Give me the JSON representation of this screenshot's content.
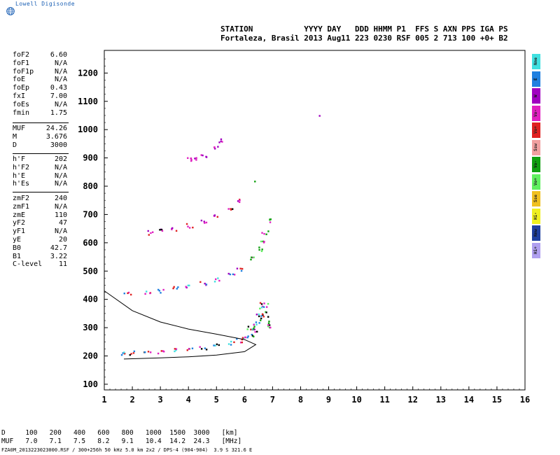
{
  "brand": "Lowell Digisonde",
  "header": {
    "line1": "STATION           YYYY DAY   DDD HHMM P1  FFS S AXN PPS IGA PS",
    "line2": "Fortaleza, Brasil 2013 Aug11 223 0230 RSF 005 2 713 100 +0+ B2"
  },
  "params": {
    "group1": [
      {
        "name": "foF2",
        "value": "6.60"
      },
      {
        "name": "foF1",
        "value": "N/A"
      },
      {
        "name": "foF1p",
        "value": "N/A"
      },
      {
        "name": "foE",
        "value": "N/A"
      },
      {
        "name": "foEp",
        "value": "0.43"
      },
      {
        "name": "fxI",
        "value": "7.00"
      },
      {
        "name": "foEs",
        "value": "N/A"
      },
      {
        "name": "fmin",
        "value": "1.75"
      }
    ],
    "group2": [
      {
        "name": "MUF",
        "value": "24.26"
      },
      {
        "name": "M",
        "value": "3.676"
      },
      {
        "name": "D",
        "value": "3000"
      }
    ],
    "group3": [
      {
        "name": "h'F",
        "value": "202"
      },
      {
        "name": "h'F2",
        "value": "N/A"
      },
      {
        "name": "h'E",
        "value": "N/A"
      },
      {
        "name": "h'Es",
        "value": "N/A"
      }
    ],
    "group4": [
      {
        "name": "zmF2",
        "value": "240"
      },
      {
        "name": "zmF1",
        "value": "N/A"
      },
      {
        "name": "zmE",
        "value": "110"
      },
      {
        "name": "yF2",
        "value": "47"
      },
      {
        "name": "yF1",
        "value": "N/A"
      },
      {
        "name": "yE",
        "value": "20"
      },
      {
        "name": "B0",
        "value": "42.7"
      },
      {
        "name": "B1",
        "value": "3.22"
      },
      {
        "name": "C-level",
        "value": "11"
      }
    ]
  },
  "legend": [
    {
      "label": "Nne",
      "color": "#40e0e0"
    },
    {
      "label": "E",
      "color": "#2080e0"
    },
    {
      "label": "W",
      "color": "#a000c0"
    },
    {
      "label": "Vo-",
      "color": "#e020c0"
    },
    {
      "label": "Vo+",
      "color": "#e02020"
    },
    {
      "label": "Ssw",
      "color": "#f0a0a0"
    },
    {
      "label": "Vo-",
      "color": "#10a010"
    },
    {
      "label": "Vo+",
      "color": "#60f060"
    },
    {
      "label": "Sse",
      "color": "#f0c020"
    },
    {
      "label": "Hi-",
      "color": "#f0f020"
    },
    {
      "label": "Nnw",
      "color": "#2040a0"
    },
    {
      "label": "Hi+",
      "color": "#b0a0f0"
    }
  ],
  "muf_table": {
    "row1": "D     100   200   400   600   800   1000  1500  3000   [km]",
    "row2": "MUF   7.0   7.1   7.5   8.2   9.1   10.4  14.2  24.3   [MHz]"
  },
  "footer": "FZA0M_2013223023000.RSF / 300+256h 50 kHz 5.0 km 2x2 / DPS-4 (904-904)  3.9 S 321.6 E",
  "chart_data": {
    "type": "scatter",
    "xlim": [
      1,
      16
    ],
    "ylim": [
      80,
      1280
    ],
    "xticks": [
      1,
      2,
      3,
      4,
      5,
      6,
      7,
      8,
      9,
      10,
      11,
      12,
      13,
      14,
      15,
      16
    ],
    "yticks": [
      100,
      200,
      300,
      400,
      500,
      600,
      700,
      800,
      900,
      1000,
      1100,
      1200
    ],
    "grid": false,
    "series": [
      {
        "trace": "F2 first hop",
        "x": [
          1.7,
          2.0,
          2.5,
          3.0,
          3.5,
          4.0,
          4.5,
          5.0,
          5.5,
          5.8,
          6.0,
          6.2,
          6.3,
          6.4,
          6.5,
          6.6
        ],
        "y": [
          212,
          213,
          215,
          218,
          222,
          227,
          232,
          238,
          248,
          256,
          262,
          272,
          290,
          320,
          350,
          380
        ]
      },
      {
        "trace": "F2 second hop",
        "x": [
          1.8,
          2.5,
          3.0,
          3.5,
          4.0,
          4.5,
          5.0,
          5.5,
          5.8
        ],
        "y": [
          422,
          426,
          432,
          440,
          448,
          460,
          472,
          492,
          510
        ]
      },
      {
        "trace": "F2 third hop",
        "x": [
          2.6,
          3.0,
          3.5,
          4.0,
          4.5,
          5.0,
          5.5,
          5.8
        ],
        "y": [
          638,
          645,
          652,
          662,
          676,
          695,
          720,
          752
        ]
      },
      {
        "trace": "F2 fourth hop",
        "x": [
          4.0,
          4.2,
          4.5,
          5.0,
          5.2
        ],
        "y": [
          895,
          900,
          910,
          940,
          965
        ]
      },
      {
        "trace": "F2 spread",
        "x": [
          6.2,
          6.4,
          6.5,
          6.6,
          6.7,
          6.8,
          6.9
        ],
        "y": [
          280,
          300,
          340,
          380,
          360,
          330,
          300
        ]
      },
      {
        "trace": "x-mode",
        "x": [
          6.3,
          6.5,
          6.6,
          6.7,
          6.8
        ],
        "y": [
          545,
          580,
          610,
          640,
          680
        ]
      },
      {
        "trace": "isolated",
        "x": [
          6.35,
          8.75
        ],
        "y": [
          820,
          1055
        ]
      }
    ],
    "profile": {
      "x": [
        1.0,
        2.0,
        3.0,
        4.0,
        5.0,
        6.0,
        6.4,
        6.0,
        5.0,
        4.0,
        3.0,
        2.0,
        1.7
      ],
      "y": [
        430,
        360,
        320,
        295,
        277,
        258,
        240,
        215,
        203,
        197,
        193,
        190,
        189
      ]
    }
  }
}
